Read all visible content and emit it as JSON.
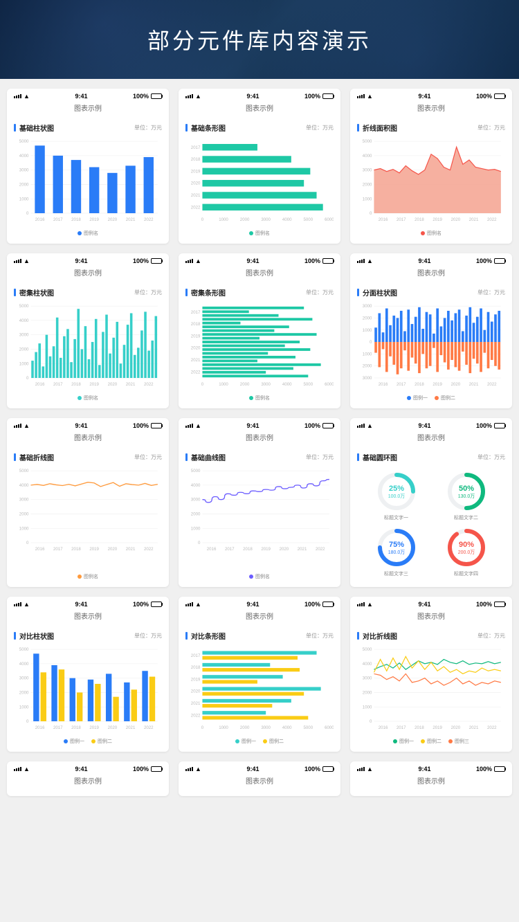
{
  "banner": {
    "title": "部分元件库内容演示"
  },
  "common": {
    "time": "9:41",
    "battery_pct": "100%",
    "page_title": "图表示例",
    "unit_label": "单位：万元",
    "legend_single": "图例名",
    "legend_pair": [
      "图例一",
      "图例二"
    ],
    "legend_triple": [
      "图例一",
      "图例二",
      "图例三"
    ],
    "years": [
      "2016",
      "2017",
      "2018",
      "2019",
      "2020",
      "2021",
      "2022"
    ],
    "years_hbar": [
      "2017",
      "2018",
      "2019",
      "2020",
      "2021",
      "2022"
    ]
  },
  "colors": {
    "blue": "#2a7cf7",
    "teal": "#1ec8a5",
    "orange": "#ff7a45",
    "yellow": "#facc15",
    "purple": "#6b5cff",
    "cyan": "#36cfc9",
    "lightblue": "#5ab8f5",
    "red": "#f5554a",
    "green_d": "#0fb97e",
    "grid": "#eeeeee",
    "axis_text": "#bbbbbb",
    "area_fill": "#f5a28f",
    "area_line": "#f5554a"
  },
  "charts": {
    "basic_bar": {
      "title": "基础柱状图",
      "ylim": [
        0,
        5000
      ],
      "ystep": 1000,
      "values": [
        4700,
        4000,
        3700,
        3200,
        2800,
        3300,
        3900
      ],
      "color": "#2a7cf7"
    },
    "basic_hbar": {
      "title": "基础条形图",
      "xlim": [
        0,
        6000
      ],
      "xstep": 1000,
      "values": [
        2600,
        4200,
        5100,
        4800,
        5400,
        5700
      ],
      "color": "#1ec8a5"
    },
    "area": {
      "title": "折线面积图",
      "ylim": [
        0,
        5000
      ],
      "ystep": 1000,
      "values": [
        3000,
        3100,
        2900,
        3050,
        2800,
        3300,
        2950,
        2700,
        3000,
        4100,
        3800,
        3200,
        3000,
        4600,
        3400,
        3700,
        3200,
        3100,
        3000,
        3050,
        2900
      ],
      "line_color": "#f5554a",
      "fill_color": "#f5a28f"
    },
    "dense_bar": {
      "title": "密集柱状图",
      "ylim": [
        0,
        5000
      ],
      "ystep": 1000,
      "values": [
        1200,
        1800,
        2400,
        800,
        3000,
        1500,
        2200,
        4200,
        1400,
        2900,
        3400,
        1100,
        2700,
        4800,
        2000,
        3600,
        1300,
        2500,
        4100,
        900,
        3200,
        4400,
        1700,
        2800,
        3900,
        1000,
        2300,
        3700,
        4500,
        1600,
        2100,
        3300,
        4600,
        1900,
        2600,
        4300
      ],
      "color": "#36cfc9"
    },
    "dense_hbar": {
      "title": "密集条形图",
      "xlim": [
        0,
        6000
      ],
      "xstep": 1000,
      "values": [
        4800,
        2200,
        3600,
        5200,
        1800,
        4100,
        3400,
        5400,
        2700,
        4600,
        3900,
        5100,
        3100,
        4400,
        2600,
        5600,
        4300,
        3000,
        5000
      ],
      "color": "#1ec8a5"
    },
    "diverging": {
      "title": "分面柱状图",
      "ylim": [
        -3000,
        3000
      ],
      "ystep": 1000,
      "top_values": [
        1200,
        2400,
        800,
        2800,
        1400,
        2200,
        2000,
        2600,
        900,
        2700,
        1500,
        2100,
        2900,
        1100,
        2500,
        2300,
        700,
        2800,
        1300,
        2000,
        2600,
        1800,
        2400,
        2700,
        900,
        2200,
        2900,
        1600,
        2100,
        2800,
        1000,
        2500,
        1700,
        2300,
        2600
      ],
      "bot_values": [
        900,
        2100,
        600,
        2500,
        1200,
        1900,
        2700,
        2200,
        700,
        2400,
        1300,
        1800,
        2600,
        1000,
        2200,
        2000,
        500,
        2500,
        1100,
        1700,
        2300,
        1500,
        2100,
        2400,
        800,
        1900,
        2600,
        1400,
        1800,
        2500,
        900,
        2200,
        1500,
        2000,
        2300
      ],
      "top_color": "#2a7cf7",
      "bot_color": "#ff7a45"
    },
    "basic_line": {
      "title": "基础折线图",
      "ylim": [
        0,
        5000
      ],
      "ystep": 1000,
      "values": [
        4000,
        4050,
        3980,
        4100,
        4020,
        3970,
        4060,
        3950,
        4080,
        4200,
        4150,
        3900,
        4050,
        4180,
        3920,
        4100,
        4040,
        4000,
        4120,
        3980,
        4060
      ],
      "color": "#ff9a3c"
    },
    "basic_curve": {
      "title": "基础曲线图",
      "ylim": [
        0,
        5000
      ],
      "ystep": 1000,
      "values": [
        3000,
        2800,
        3200,
        3000,
        3400,
        3300,
        3500,
        3400,
        3600,
        3550,
        3700,
        3650,
        3900,
        3750,
        3850,
        4000,
        3800,
        4100,
        3950,
        4300,
        4400
      ],
      "color": "#6b5cff"
    },
    "donuts": {
      "title": "基础圆环图",
      "items": [
        {
          "pct": 25,
          "val": "100.0万",
          "label": "标题文字一",
          "color": "#36cfc9"
        },
        {
          "pct": 50,
          "val": "130.0万",
          "label": "标题文字二",
          "color": "#0fb97e"
        },
        {
          "pct": 75,
          "val": "180.0万",
          "label": "标题文字三",
          "color": "#2a7cf7"
        },
        {
          "pct": 90,
          "val": "200.0万",
          "label": "标题文字四",
          "color": "#f5554a"
        }
      ]
    },
    "compare_bar": {
      "title": "对比柱状图",
      "ylim": [
        0,
        5000
      ],
      "ystep": 1000,
      "a": [
        4700,
        3900,
        3000,
        2900,
        3300,
        2700,
        3500
      ],
      "b": [
        3400,
        3600,
        2000,
        2600,
        1700,
        2200,
        3100
      ],
      "color_a": "#2a7cf7",
      "color_b": "#facc15"
    },
    "compare_hbar": {
      "title": "对比条形图",
      "xlim": [
        0,
        6000
      ],
      "xstep": 1000,
      "a": [
        5400,
        3200,
        3800,
        5600,
        4200,
        3000
      ],
      "b": [
        4500,
        4600,
        2600,
        4800,
        3300,
        5000
      ],
      "color_a": "#36cfc9",
      "color_b": "#facc15"
    },
    "compare_line": {
      "title": "对比折线图",
      "ylim": [
        0,
        5000
      ],
      "ystep": 1000,
      "a": [
        3600,
        3800,
        3950,
        3700,
        4050,
        3600,
        3900,
        4200,
        4000,
        4100,
        3950,
        4300,
        4100,
        4000,
        4200,
        3950,
        4050,
        4000,
        4150,
        4000,
        4100
      ],
      "b": [
        3400,
        4300,
        3500,
        4400,
        3600,
        4500,
        3700,
        4200,
        3600,
        4100,
        3500,
        3800,
        3400,
        3600,
        3300,
        3500,
        3400,
        3700,
        3500,
        3600,
        3500
      ],
      "c": [
        3300,
        3200,
        2900,
        3100,
        2800,
        3300,
        2700,
        2800,
        3000,
        2600,
        2800,
        2500,
        2700,
        3000,
        2600,
        2800,
        2500,
        2700,
        2600,
        2800,
        2700
      ],
      "color_a": "#0fb97e",
      "color_b": "#facc15",
      "color_c": "#ff7a45"
    }
  }
}
